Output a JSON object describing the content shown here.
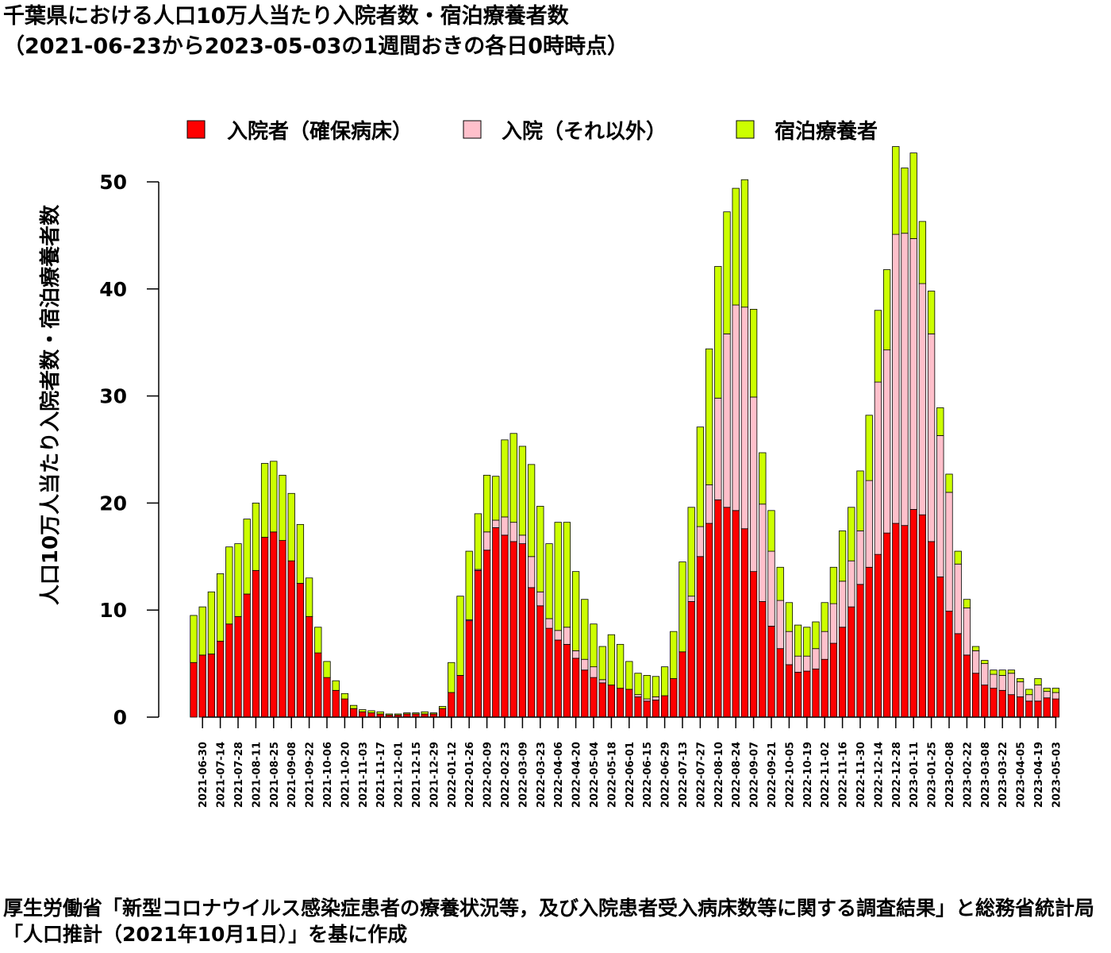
{
  "title": {
    "line1": "千葉県における人口10万人当たり入院者数・宿泊療養者数",
    "line2": "（2021-06-23から2023-05-03の1週間おきの各日0時時点）"
  },
  "footnote": "厚生労働省「新型コロナウイルス感染症患者の療養状況等，及び入院患者受入病床数等に関する調査結果」と総務省統計局「人口推計（2021年10月1日）」を基に作成",
  "chart_data": {
    "type": "bar",
    "stacked": true,
    "title": "千葉県における人口10万人当たり入院者数・宿泊療養者数",
    "ylabel": "人口10万人当たり入院者数・宿泊療養者数",
    "ylim": [
      0,
      53
    ],
    "yticks": [
      0,
      10,
      20,
      30,
      40,
      50
    ],
    "grid": false,
    "legend_position": "top",
    "start_date": "2021-06-23",
    "categories": [
      "2021-06-23",
      "2021-06-30",
      "2021-07-07",
      "2021-07-14",
      "2021-07-21",
      "2021-07-28",
      "2021-08-04",
      "2021-08-11",
      "2021-08-18",
      "2021-08-25",
      "2021-09-01",
      "2021-09-08",
      "2021-09-15",
      "2021-09-22",
      "2021-09-29",
      "2021-10-06",
      "2021-10-13",
      "2021-10-20",
      "2021-10-27",
      "2021-11-03",
      "2021-11-10",
      "2021-11-17",
      "2021-11-24",
      "2021-12-01",
      "2021-12-08",
      "2021-12-15",
      "2021-12-22",
      "2021-12-29",
      "2022-01-05",
      "2022-01-12",
      "2022-01-19",
      "2022-01-26",
      "2022-02-02",
      "2022-02-09",
      "2022-02-16",
      "2022-02-23",
      "2022-03-02",
      "2022-03-09",
      "2022-03-16",
      "2022-03-23",
      "2022-03-30",
      "2022-04-06",
      "2022-04-13",
      "2022-04-20",
      "2022-04-27",
      "2022-05-04",
      "2022-05-11",
      "2022-05-18",
      "2022-05-25",
      "2022-06-01",
      "2022-06-08",
      "2022-06-15",
      "2022-06-22",
      "2022-06-29",
      "2022-07-06",
      "2022-07-13",
      "2022-07-20",
      "2022-07-27",
      "2022-08-03",
      "2022-08-10",
      "2022-08-17",
      "2022-08-24",
      "2022-08-31",
      "2022-09-07",
      "2022-09-14",
      "2022-09-21",
      "2022-09-28",
      "2022-10-05",
      "2022-10-12",
      "2022-10-19",
      "2022-10-26",
      "2022-11-02",
      "2022-11-09",
      "2022-11-16",
      "2022-11-23",
      "2022-11-30",
      "2022-12-07",
      "2022-12-14",
      "2022-12-21",
      "2022-12-28",
      "2023-01-04",
      "2023-01-11",
      "2023-01-18",
      "2023-01-25",
      "2023-02-01",
      "2023-02-08",
      "2023-02-15",
      "2023-02-22",
      "2023-03-01",
      "2023-03-08",
      "2023-03-15",
      "2023-03-22",
      "2023-03-29",
      "2023-04-05",
      "2023-04-12",
      "2023-04-19",
      "2023-04-26",
      "2023-05-03"
    ],
    "series": [
      {
        "name": "入院者（確保病床）",
        "color": "#ff0000",
        "values": [
          5.1,
          5.8,
          5.9,
          7.1,
          8.7,
          9.4,
          11.5,
          13.7,
          16.8,
          17.3,
          16.5,
          14.6,
          12.5,
          9.4,
          6.0,
          3.7,
          2.5,
          1.7,
          0.8,
          0.5,
          0.4,
          0.3,
          0.2,
          0.2,
          0.3,
          0.3,
          0.3,
          0.3,
          0.8,
          2.3,
          3.9,
          9.0,
          13.7,
          15.6,
          17.7,
          17.0,
          16.4,
          16.2,
          12.1,
          10.4,
          8.3,
          7.2,
          6.8,
          5.5,
          4.4,
          3.7,
          3.2,
          3.0,
          2.7,
          2.6,
          1.9,
          1.5,
          1.6,
          2.0,
          3.6,
          6.1,
          10.8,
          15.0,
          18.1,
          20.3,
          19.6,
          19.3,
          17.6,
          13.6,
          10.8,
          8.5,
          6.4,
          4.9,
          4.2,
          4.3,
          4.5,
          5.4,
          6.9,
          8.4,
          10.3,
          12.4,
          14.0,
          15.2,
          17.2,
          18.1,
          17.9,
          19.4,
          18.9,
          16.4,
          13.1,
          9.9,
          7.8,
          5.8,
          4.1,
          3.0,
          2.7,
          2.5,
          2.1,
          1.9,
          1.5,
          1.5,
          1.8,
          1.7
        ]
      },
      {
        "name": "入院（それ以外）",
        "color": "#ffc0cb",
        "values": [
          0,
          0,
          0,
          0,
          0,
          0,
          0,
          0,
          0,
          0,
          0,
          0,
          0,
          0,
          0,
          0,
          0,
          0,
          0,
          0,
          0,
          0,
          0,
          0,
          0,
          0,
          0,
          0,
          0,
          0,
          0,
          0.1,
          0.1,
          1.7,
          0.7,
          1.7,
          1.8,
          0.8,
          2.9,
          1.3,
          0.9,
          0.9,
          1.6,
          0.7,
          1.0,
          1.0,
          0.3,
          0,
          0,
          0,
          0.2,
          0.2,
          0.3,
          0,
          0,
          0,
          0.5,
          2.8,
          3.6,
          9.5,
          16.2,
          19.2,
          20.7,
          16.3,
          9.1,
          7.0,
          4.5,
          3.1,
          1.5,
          1.4,
          1.9,
          2.6,
          3.7,
          4.3,
          4.3,
          5.0,
          8.1,
          16.1,
          17.1,
          27.0,
          27.3,
          25.3,
          21.6,
          19.4,
          13.2,
          11.1,
          6.5,
          4.4,
          2.1,
          2.0,
          1.3,
          1.4,
          2.0,
          1.4,
          0.6,
          1.5,
          0.6,
          0.6
        ]
      },
      {
        "name": "宿泊療養者",
        "color": "#ccff00",
        "values": [
          4.4,
          4.5,
          5.8,
          6.3,
          7.2,
          6.8,
          7.0,
          6.3,
          6.9,
          6.6,
          6.1,
          6.3,
          5.5,
          3.6,
          2.4,
          1.5,
          0.9,
          0.5,
          0.3,
          0.2,
          0.2,
          0.2,
          0.1,
          0.1,
          0.1,
          0.1,
          0.2,
          0.1,
          0.2,
          2.8,
          7.4,
          6.4,
          5.2,
          5.3,
          4.1,
          7.2,
          8.3,
          8.3,
          8.6,
          8.0,
          7.0,
          10.1,
          9.8,
          7.4,
          5.6,
          4.0,
          3.1,
          4.7,
          4.1,
          2.6,
          2.0,
          2.2,
          1.9,
          2.7,
          4.4,
          8.4,
          8.3,
          9.3,
          12.7,
          12.3,
          11.4,
          10.9,
          11.9,
          8.2,
          4.8,
          3.8,
          3.1,
          2.7,
          2.9,
          2.7,
          2.5,
          2.7,
          3.4,
          4.7,
          5.0,
          5.6,
          6.1,
          6.7,
          7.5,
          8.2,
          6.1,
          8.0,
          5.8,
          4.0,
          2.6,
          1.7,
          1.2,
          0.8,
          0.4,
          0.3,
          0.4,
          0.5,
          0.3,
          0.3,
          0.5,
          0.6,
          0.3,
          0.4
        ]
      }
    ]
  }
}
